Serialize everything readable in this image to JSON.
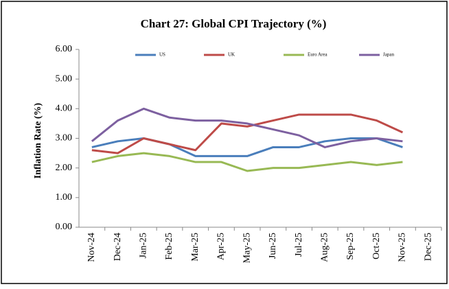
{
  "chart_data": {
    "type": "line",
    "title": "Chart 27: Global CPI Trajectory (%)",
    "y_label": "Inflation Rate (%)",
    "categories": [
      "Nov-24",
      "Dec-24",
      "Jan-25",
      "Feb-25",
      "Mar-25",
      "Apr-25",
      "May-25",
      "Jun-25",
      "Jul-25",
      "Aug-25",
      "Sep-25",
      "Oct-25",
      "Nov-25",
      "Dec-25"
    ],
    "series": [
      {
        "name": "US",
        "color": "#4a7ebb",
        "values": [
          2.7,
          2.9,
          3.0,
          2.8,
          2.4,
          2.4,
          2.4,
          2.7,
          2.7,
          2.9,
          3.0,
          3.0,
          2.7,
          null
        ]
      },
      {
        "name": "UK",
        "color": "#be4b48",
        "values": [
          2.6,
          2.5,
          3.0,
          2.8,
          2.6,
          3.5,
          3.4,
          3.6,
          3.8,
          3.8,
          3.8,
          3.6,
          3.2,
          null
        ]
      },
      {
        "name": "Euro Area",
        "color": "#98b954",
        "values": [
          2.2,
          2.4,
          2.5,
          2.4,
          2.2,
          2.2,
          1.9,
          2.0,
          2.0,
          2.1,
          2.2,
          2.1,
          2.2,
          null
        ]
      },
      {
        "name": "Japan",
        "color": "#7d60a0",
        "values": [
          2.9,
          3.6,
          4.0,
          3.7,
          3.6,
          3.6,
          3.5,
          3.3,
          3.1,
          2.7,
          2.9,
          3.0,
          2.9,
          null
        ]
      }
    ],
    "ylim": [
      0,
      6
    ],
    "yticks": [
      {
        "value": 0,
        "label": "0.00"
      },
      {
        "value": 1,
        "label": "1.00"
      },
      {
        "value": 2,
        "label": "2.00"
      },
      {
        "value": 3,
        "label": "3.00"
      },
      {
        "value": 4,
        "label": "4.00"
      },
      {
        "value": 5,
        "label": "5.00"
      },
      {
        "value": 6,
        "label": "6.00"
      }
    ],
    "legend": "top",
    "grid": false
  }
}
